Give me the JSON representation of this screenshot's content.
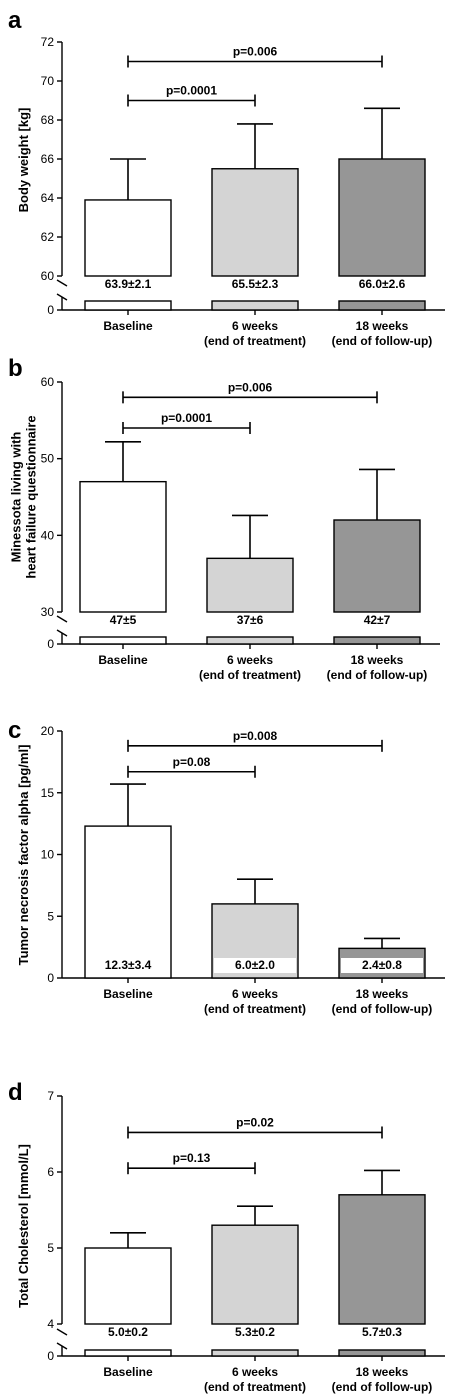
{
  "chart_data": [
    {
      "type": "bar",
      "panel": "a",
      "ylabel": "Body weight [kg]",
      "categories": [
        [
          "Baseline"
        ],
        [
          "6 weeks",
          "(end of treatment)"
        ],
        [
          "18 weeks",
          "(end of follow-up)"
        ]
      ],
      "values": [
        63.9,
        65.5,
        66.0
      ],
      "errors": [
        2.1,
        2.3,
        2.6
      ],
      "value_labels": [
        "63.9±2.1",
        "65.5±2.3",
        "66.0±2.6"
      ],
      "ylim": [
        60,
        72
      ],
      "yticks": [
        60,
        62,
        64,
        66,
        68,
        70,
        72
      ],
      "broken_axis_zero": "0",
      "bar_colors": [
        "#ffffff",
        "#d4d4d4",
        "#969696"
      ],
      "comparisons": [
        {
          "from": 0,
          "to": 1,
          "label": "p=0.0001",
          "y": 69.0
        },
        {
          "from": 0,
          "to": 2,
          "label": "p=0.006",
          "y": 71.0
        }
      ]
    },
    {
      "type": "bar",
      "panel": "b",
      "ylabel": [
        "Minessota living with",
        "heart failure questionnaire"
      ],
      "categories": [
        [
          "Baseline"
        ],
        [
          "6 weeks",
          "(end of treatment)"
        ],
        [
          "18 weeks",
          "(end of follow-up)"
        ]
      ],
      "values": [
        47,
        37,
        42
      ],
      "errors": [
        5.2,
        5.6,
        6.6
      ],
      "value_labels": [
        "47±5",
        "37±6",
        "42±7"
      ],
      "ylim": [
        30,
        60
      ],
      "yticks": [
        30,
        40,
        50,
        60
      ],
      "broken_axis_zero": "0",
      "bar_colors": [
        "#ffffff",
        "#d4d4d4",
        "#969696"
      ],
      "comparisons": [
        {
          "from": 0,
          "to": 1,
          "label": "p=0.0001",
          "y": 54.0
        },
        {
          "from": 0,
          "to": 2,
          "label": "p=0.006",
          "y": 58.0
        }
      ]
    },
    {
      "type": "bar",
      "panel": "c",
      "ylabel": "Tumor necrosis factor alpha [pg/ml]",
      "categories": [
        [
          "Baseline"
        ],
        [
          "6 weeks",
          "(end of treatment)"
        ],
        [
          "18 weeks",
          "(end of follow-up)"
        ]
      ],
      "values": [
        12.3,
        6.0,
        2.4
      ],
      "errors": [
        3.4,
        2.0,
        0.8
      ],
      "value_labels": [
        "12.3±3.4",
        "6.0±2.0",
        "2.4±0.8"
      ],
      "ylim": [
        0,
        20
      ],
      "yticks": [
        0,
        5,
        10,
        15,
        20
      ],
      "broken_axis_zero": null,
      "bar_colors": [
        "#ffffff",
        "#d4d4d4",
        "#969696"
      ],
      "comparisons": [
        {
          "from": 0,
          "to": 1,
          "label": "p=0.08",
          "y": 16.7
        },
        {
          "from": 0,
          "to": 2,
          "label": "p=0.008",
          "y": 18.8
        }
      ]
    },
    {
      "type": "bar",
      "panel": "d",
      "ylabel": "Total Cholesterol [mmol/L]",
      "categories": [
        [
          "Baseline"
        ],
        [
          "6 weeks",
          "(end of treatment)"
        ],
        [
          "18 weeks",
          "(end of follow-up)"
        ]
      ],
      "values": [
        5.0,
        5.3,
        5.7
      ],
      "errors": [
        0.2,
        0.25,
        0.32
      ],
      "value_labels": [
        "5.0±0.2",
        "5.3±0.2",
        "5.7±0.3"
      ],
      "ylim": [
        4,
        7
      ],
      "yticks": [
        4,
        5,
        6,
        7
      ],
      "broken_axis_zero": "0",
      "bar_colors": [
        "#ffffff",
        "#d4d4d4",
        "#969696"
      ],
      "comparisons": [
        {
          "from": 0,
          "to": 1,
          "label": "p=0.13",
          "y": 6.05
        },
        {
          "from": 0,
          "to": 2,
          "label": "p=0.02",
          "y": 6.52
        }
      ]
    }
  ]
}
